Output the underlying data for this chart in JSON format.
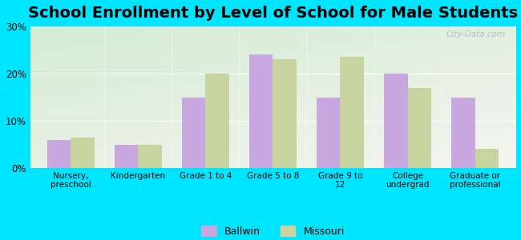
{
  "title": "School Enrollment by Level of School for Male Students",
  "categories": [
    "Nursery,\npreschool",
    "Kindergarten",
    "Grade 1 to 4",
    "Grade 5 to 8",
    "Grade 9 to\n12",
    "College\nundergrad",
    "Graduate or\nprofessional"
  ],
  "ballwin": [
    6,
    5,
    15,
    24,
    15,
    20,
    15
  ],
  "missouri": [
    6.5,
    5,
    20,
    23,
    23.5,
    17,
    4
  ],
  "ballwin_color": "#c9a8e0",
  "missouri_color": "#c8d4a0",
  "background_color": "#00e5ff",
  "plot_bg_top_left": "#d4ecd4",
  "plot_bg_bottom_right": "#f5f5f0",
  "ylim": [
    0,
    30
  ],
  "yticks": [
    0,
    10,
    20,
    30
  ],
  "bar_width": 0.35,
  "title_fontsize": 14,
  "legend_labels": [
    "Ballwin",
    "Missouri"
  ]
}
